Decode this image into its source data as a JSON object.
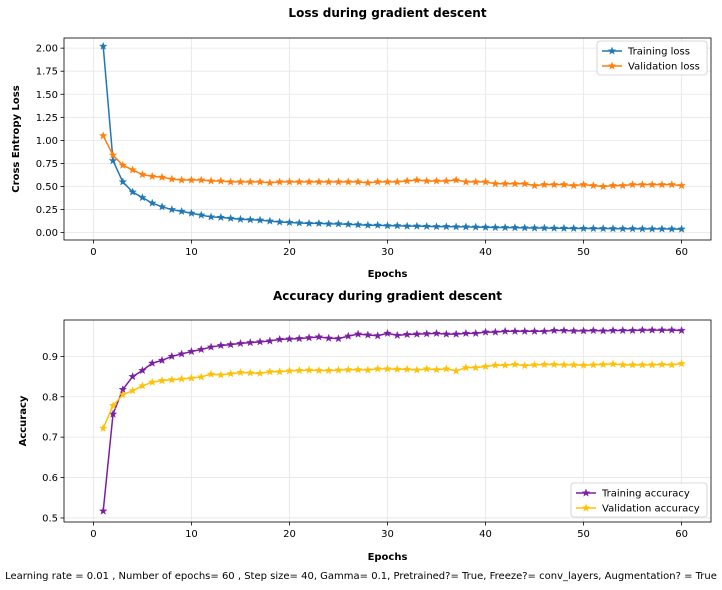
{
  "chart_data": [
    {
      "type": "line",
      "title": "Loss during gradient descent",
      "xlabel": "Epochs",
      "ylabel": "Cross Entropy Loss",
      "xlim": [
        -3,
        63
      ],
      "ylim": [
        -0.08,
        2.11
      ],
      "xticks": [
        0,
        10,
        20,
        30,
        40,
        50,
        60
      ],
      "yticks": [
        0.0,
        0.25,
        0.5,
        0.75,
        1.0,
        1.25,
        1.5,
        1.75,
        2.0
      ],
      "ytick_labels": [
        "0.00",
        "0.25",
        "0.50",
        "0.75",
        "1.00",
        "1.25",
        "1.50",
        "1.75",
        "2.00"
      ],
      "grid": true,
      "legend_position": "top-right",
      "marker": "star",
      "x": [
        1,
        2,
        3,
        4,
        5,
        6,
        7,
        8,
        9,
        10,
        11,
        12,
        13,
        14,
        15,
        16,
        17,
        18,
        19,
        20,
        21,
        22,
        23,
        24,
        25,
        26,
        27,
        28,
        29,
        30,
        31,
        32,
        33,
        34,
        35,
        36,
        37,
        38,
        39,
        40,
        41,
        42,
        43,
        44,
        45,
        46,
        47,
        48,
        49,
        50,
        51,
        52,
        53,
        54,
        55,
        56,
        57,
        58,
        59,
        60
      ],
      "series": [
        {
          "name": "Training loss",
          "color": "#1f77b4",
          "values": [
            2.02,
            0.78,
            0.55,
            0.44,
            0.38,
            0.32,
            0.28,
            0.25,
            0.23,
            0.21,
            0.19,
            0.17,
            0.165,
            0.155,
            0.145,
            0.14,
            0.135,
            0.125,
            0.115,
            0.11,
            0.105,
            0.1,
            0.1,
            0.095,
            0.095,
            0.09,
            0.085,
            0.08,
            0.08,
            0.075,
            0.075,
            0.07,
            0.07,
            0.068,
            0.065,
            0.065,
            0.063,
            0.062,
            0.06,
            0.058,
            0.056,
            0.055,
            0.054,
            0.052,
            0.05,
            0.05,
            0.048,
            0.047,
            0.046,
            0.045,
            0.045,
            0.044,
            0.043,
            0.042,
            0.042,
            0.041,
            0.04,
            0.04,
            0.039,
            0.038
          ]
        },
        {
          "name": "Validation loss",
          "color": "#ff7f0e",
          "values": [
            1.05,
            0.84,
            0.73,
            0.68,
            0.63,
            0.61,
            0.6,
            0.58,
            0.57,
            0.57,
            0.57,
            0.56,
            0.56,
            0.55,
            0.55,
            0.55,
            0.55,
            0.54,
            0.55,
            0.55,
            0.55,
            0.55,
            0.55,
            0.55,
            0.55,
            0.55,
            0.55,
            0.54,
            0.55,
            0.55,
            0.55,
            0.56,
            0.57,
            0.56,
            0.56,
            0.56,
            0.57,
            0.55,
            0.55,
            0.55,
            0.53,
            0.53,
            0.53,
            0.53,
            0.51,
            0.52,
            0.52,
            0.52,
            0.51,
            0.52,
            0.51,
            0.5,
            0.51,
            0.51,
            0.52,
            0.52,
            0.52,
            0.52,
            0.52,
            0.51
          ]
        }
      ]
    },
    {
      "type": "line",
      "title": "Accuracy during gradient descent",
      "xlabel": "Epochs",
      "ylabel": "Accuracy",
      "xlim": [
        -3,
        63
      ],
      "ylim": [
        0.49,
        0.99
      ],
      "xticks": [
        0,
        10,
        20,
        30,
        40,
        50,
        60
      ],
      "yticks": [
        0.5,
        0.6,
        0.7,
        0.8,
        0.9
      ],
      "ytick_labels": [
        "0.5",
        "0.6",
        "0.7",
        "0.8",
        "0.9"
      ],
      "grid": true,
      "legend_position": "bottom-right",
      "marker": "star",
      "x": [
        1,
        2,
        3,
        4,
        5,
        6,
        7,
        8,
        9,
        10,
        11,
        12,
        13,
        14,
        15,
        16,
        17,
        18,
        19,
        20,
        21,
        22,
        23,
        24,
        25,
        26,
        27,
        28,
        29,
        30,
        31,
        32,
        33,
        34,
        35,
        36,
        37,
        38,
        39,
        40,
        41,
        42,
        43,
        44,
        45,
        46,
        47,
        48,
        49,
        50,
        51,
        52,
        53,
        54,
        55,
        56,
        57,
        58,
        59,
        60
      ],
      "series": [
        {
          "name": "Training accuracy",
          "color": "#7b1fa2",
          "values": [
            0.517,
            0.757,
            0.818,
            0.85,
            0.865,
            0.883,
            0.89,
            0.9,
            0.906,
            0.912,
            0.917,
            0.923,
            0.927,
            0.929,
            0.932,
            0.934,
            0.936,
            0.938,
            0.942,
            0.943,
            0.944,
            0.946,
            0.948,
            0.945,
            0.944,
            0.95,
            0.955,
            0.953,
            0.951,
            0.957,
            0.952,
            0.954,
            0.955,
            0.956,
            0.957,
            0.955,
            0.955,
            0.957,
            0.957,
            0.96,
            0.96,
            0.962,
            0.962,
            0.962,
            0.962,
            0.962,
            0.964,
            0.964,
            0.963,
            0.963,
            0.964,
            0.963,
            0.964,
            0.964,
            0.964,
            0.965,
            0.965,
            0.965,
            0.965,
            0.964
          ]
        },
        {
          "name": "Validation accuracy",
          "color": "#ffc107",
          "values": [
            0.722,
            0.778,
            0.805,
            0.815,
            0.827,
            0.836,
            0.84,
            0.842,
            0.844,
            0.846,
            0.849,
            0.856,
            0.854,
            0.857,
            0.86,
            0.859,
            0.858,
            0.862,
            0.862,
            0.864,
            0.865,
            0.866,
            0.865,
            0.865,
            0.866,
            0.867,
            0.867,
            0.866,
            0.869,
            0.869,
            0.868,
            0.868,
            0.866,
            0.869,
            0.867,
            0.869,
            0.864,
            0.872,
            0.872,
            0.875,
            0.878,
            0.878,
            0.88,
            0.877,
            0.879,
            0.88,
            0.88,
            0.879,
            0.879,
            0.878,
            0.879,
            0.88,
            0.881,
            0.879,
            0.879,
            0.879,
            0.879,
            0.88,
            0.879,
            0.882
          ]
        }
      ]
    }
  ],
  "caption": "Learning rate = 0.01 , Number of epochs= 60 , Step size= 40, Gamma= 0.1, Pretrained?= True, Freeze?= conv_layers, Augmentation? = True"
}
